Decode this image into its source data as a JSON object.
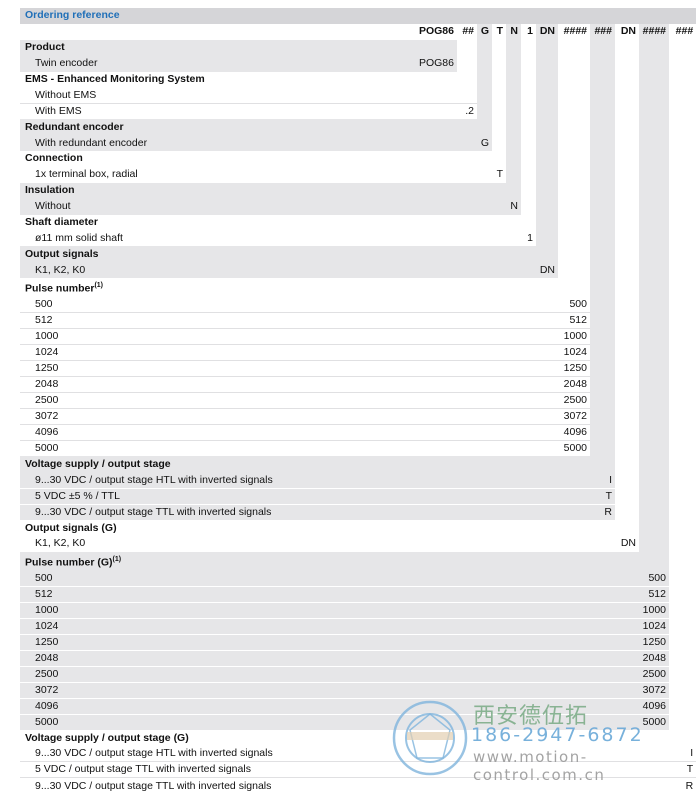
{
  "title": "Ordering reference",
  "codes": [
    "POG86",
    "##",
    "G",
    "T",
    "N",
    "1",
    "DN",
    "####",
    "###",
    "DN",
    "####",
    "###"
  ],
  "colors": {
    "accent": "#1f6fb8",
    "gray": "#e6e6e8",
    "title_bar": "#d5d5d8"
  },
  "sections": [
    {
      "title": "Product",
      "col": 0,
      "items": [
        {
          "label": "Twin encoder",
          "value": "POG86"
        }
      ]
    },
    {
      "title": "EMS - Enhanced Monitoring System",
      "col": 1,
      "items": [
        {
          "label": "Without EMS",
          "value": ""
        },
        {
          "label": "With EMS",
          "value": ".2"
        }
      ]
    },
    {
      "title": "Redundant encoder",
      "col": 2,
      "items": [
        {
          "label": "With redundant encoder",
          "value": "G"
        }
      ]
    },
    {
      "title": "Connection",
      "col": 3,
      "items": [
        {
          "label": "1x terminal box, radial",
          "value": "T"
        }
      ]
    },
    {
      "title": "Insulation",
      "col": 4,
      "items": [
        {
          "label": "Without",
          "value": "N"
        }
      ]
    },
    {
      "title": "Shaft diameter",
      "col": 5,
      "items": [
        {
          "label": "ø11 mm solid shaft",
          "value": "1"
        }
      ]
    },
    {
      "title": "Output signals",
      "col": 6,
      "items": [
        {
          "label": "K1, K2, K0",
          "value": "DN"
        }
      ]
    },
    {
      "title": "Pulse number",
      "sup": "(1)",
      "col": 7,
      "items": [
        {
          "label": "500",
          "value": "500"
        },
        {
          "label": "512",
          "value": "512"
        },
        {
          "label": "1000",
          "value": "1000"
        },
        {
          "label": "1024",
          "value": "1024"
        },
        {
          "label": "1250",
          "value": "1250"
        },
        {
          "label": "2048",
          "value": "2048"
        },
        {
          "label": "2500",
          "value": "2500"
        },
        {
          "label": "3072",
          "value": "3072"
        },
        {
          "label": "4096",
          "value": "4096"
        },
        {
          "label": "5000",
          "value": "5000"
        }
      ]
    },
    {
      "title": "Voltage supply / output stage",
      "col": 8,
      "items": [
        {
          "label": "9...30 VDC / output stage HTL with inverted signals",
          "value": "I"
        },
        {
          "label": "5 VDC ±5 % / TTL",
          "value": "T"
        },
        {
          "label": "9...30 VDC / output stage TTL with inverted signals",
          "value": "R"
        }
      ]
    },
    {
      "title": "Output signals (G)",
      "col": 9,
      "items": [
        {
          "label": "K1, K2, K0",
          "value": "DN"
        }
      ]
    },
    {
      "title": "Pulse number (G)",
      "sup": "(1)",
      "col": 10,
      "items": [
        {
          "label": "500",
          "value": "500"
        },
        {
          "label": "512",
          "value": "512"
        },
        {
          "label": "1000",
          "value": "1000"
        },
        {
          "label": "1024",
          "value": "1024"
        },
        {
          "label": "1250",
          "value": "1250"
        },
        {
          "label": "2048",
          "value": "2048"
        },
        {
          "label": "2500",
          "value": "2500"
        },
        {
          "label": "3072",
          "value": "3072"
        },
        {
          "label": "4096",
          "value": "4096"
        },
        {
          "label": "5000",
          "value": "5000"
        }
      ]
    },
    {
      "title": "Voltage supply / output stage (G)",
      "col": 11,
      "items": [
        {
          "label": "9...30 VDC / output stage HTL with inverted signals",
          "value": "I"
        },
        {
          "label": "5 VDC / output stage TTL with inverted signals",
          "value": "T"
        },
        {
          "label": "9...30 VDC / output stage TTL with inverted signals",
          "value": "R"
        }
      ]
    }
  ],
  "watermark": {
    "company": "西安德伍拓",
    "phone": "186-2947-6872",
    "url": "www.motion-control.com.cn"
  }
}
